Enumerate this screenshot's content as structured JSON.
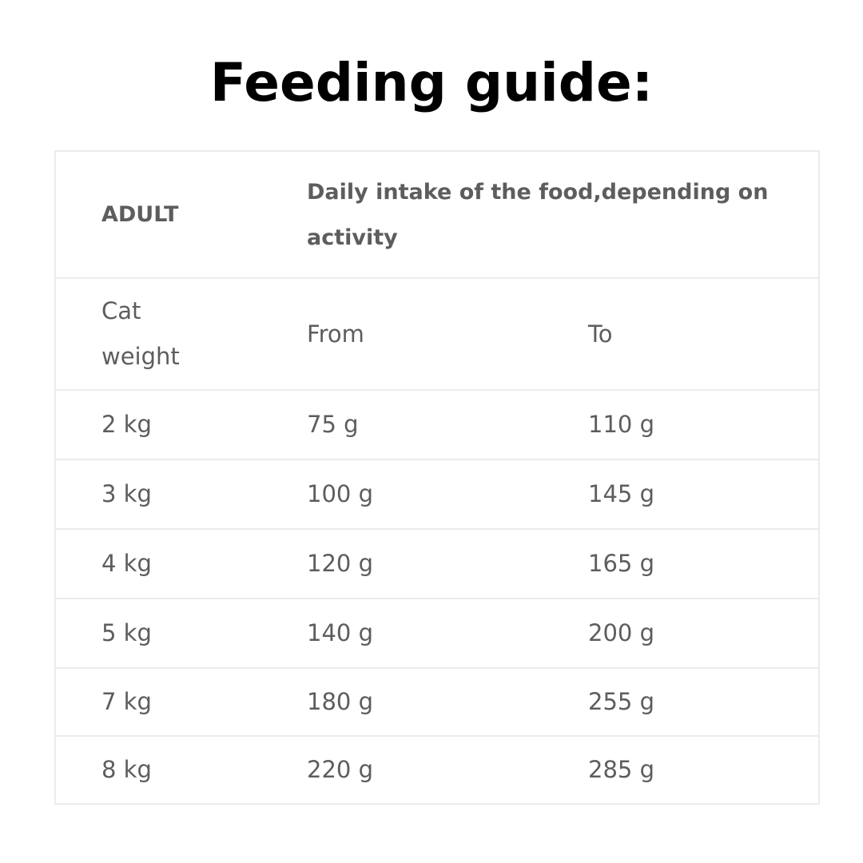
{
  "title": "Feeding guide:",
  "table": {
    "header": {
      "col1": "ADULT",
      "col2": "Daily intake of the food,depending on activity"
    },
    "subheader": {
      "col1": "Cat weight",
      "col2": "From",
      "col3": "To"
    },
    "rows": [
      {
        "weight": "2 kg",
        "from": "75 g",
        "to": "110 g"
      },
      {
        "weight": "3 kg",
        "from": "100 g",
        "to": "145 g"
      },
      {
        "weight": "4 kg",
        "from": "120 g",
        "to": "165 g"
      },
      {
        "weight": "5 kg",
        "from": "140 g",
        "to": "200 g"
      },
      {
        "weight": "7 kg",
        "from": "180 g",
        "to": "255 g"
      },
      {
        "weight": "8 kg",
        "from": "220 g",
        "to": "285 g"
      }
    ]
  },
  "colors": {
    "text": "#5d5d5d",
    "title": "#000000",
    "border": "#ececec"
  }
}
